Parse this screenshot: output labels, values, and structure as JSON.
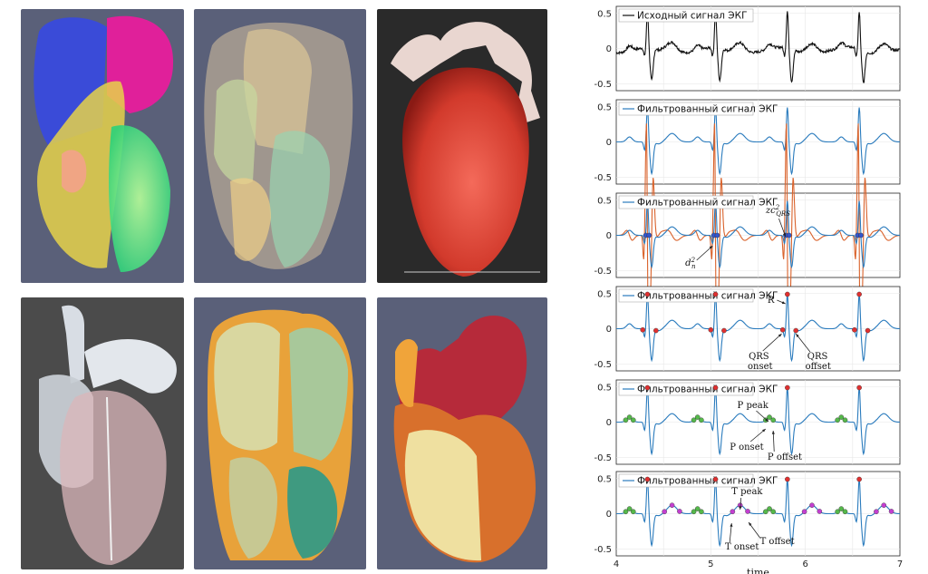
{
  "images": [
    {
      "name": "heart-segmentation-render-1",
      "description_icon": "heart-icon"
    },
    {
      "name": "heart-translucent-render",
      "description_icon": "heart-icon"
    },
    {
      "name": "heart-volume-render-red",
      "description_icon": "heart-icon"
    },
    {
      "name": "heart-vessel-mesh-render",
      "description_icon": "heart-icon"
    },
    {
      "name": "heart-section-render",
      "description_icon": "heart-icon"
    },
    {
      "name": "heart-surface-model-render",
      "description_icon": "heart-icon"
    }
  ],
  "colors": {
    "raw": "#111111",
    "filtered": "#2a7bbd",
    "orange": "#d9622b",
    "marker_red": "#e03030",
    "marker_green": "#55b84a",
    "marker_magenta": "#c33fd0",
    "marker_blue": "#3355cc"
  },
  "chart_data": {
    "type": "line",
    "xlim": [
      4,
      7
    ],
    "xticks": [
      "4",
      "5",
      "6",
      "7"
    ],
    "xlabel": "time",
    "r_peaks": [
      4.33,
      5.05,
      5.81,
      6.57
    ],
    "panels": [
      {
        "legend": "Исходный сигнал ЭКГ",
        "ylim": [
          -0.6,
          0.6
        ],
        "yticks": [
          "0.5",
          "0",
          "-0.5"
        ],
        "annotations": []
      },
      {
        "legend": "Фильтрованный сигнал ЭКГ",
        "ylim": [
          -0.6,
          0.6
        ],
        "yticks": [
          "0.5",
          "0",
          "-0.5"
        ],
        "annotations": []
      },
      {
        "legend": "Фильтрованный сигнал ЭКГ",
        "ylim": [
          -0.6,
          0.6
        ],
        "yticks": [
          "0.5",
          "0",
          "-0.5"
        ],
        "annotations": [
          {
            "main": "zc",
            "sup": "2",
            "sub": "QRS"
          },
          {
            "main": "d",
            "sup": "2",
            "sub": "n"
          }
        ]
      },
      {
        "legend": "Фильтрованный сигнал ЭКГ",
        "ylim": [
          -0.6,
          0.6
        ],
        "yticks": [
          "0.5",
          "0",
          "-0.5"
        ],
        "annotations": [
          {
            "text": "R"
          },
          {
            "text": "QRS"
          },
          {
            "text": "onset"
          },
          {
            "text": "QRS"
          },
          {
            "text": "offset"
          }
        ]
      },
      {
        "legend": "Фильтрованный сигнал ЭКГ",
        "ylim": [
          -0.6,
          0.6
        ],
        "yticks": [
          "0.5",
          "0",
          "-0.5"
        ],
        "annotations": [
          {
            "text": "P peak"
          },
          {
            "text": "P onset"
          },
          {
            "text": "P offset"
          }
        ]
      },
      {
        "legend": "Фильтрованный сигнал ЭКГ",
        "ylim": [
          -0.6,
          0.6
        ],
        "yticks": [
          "0.5",
          "0",
          "-0.5"
        ],
        "annotations": [
          {
            "text": "T peak"
          },
          {
            "text": "T onset"
          },
          {
            "text": "T offset"
          }
        ]
      }
    ]
  }
}
